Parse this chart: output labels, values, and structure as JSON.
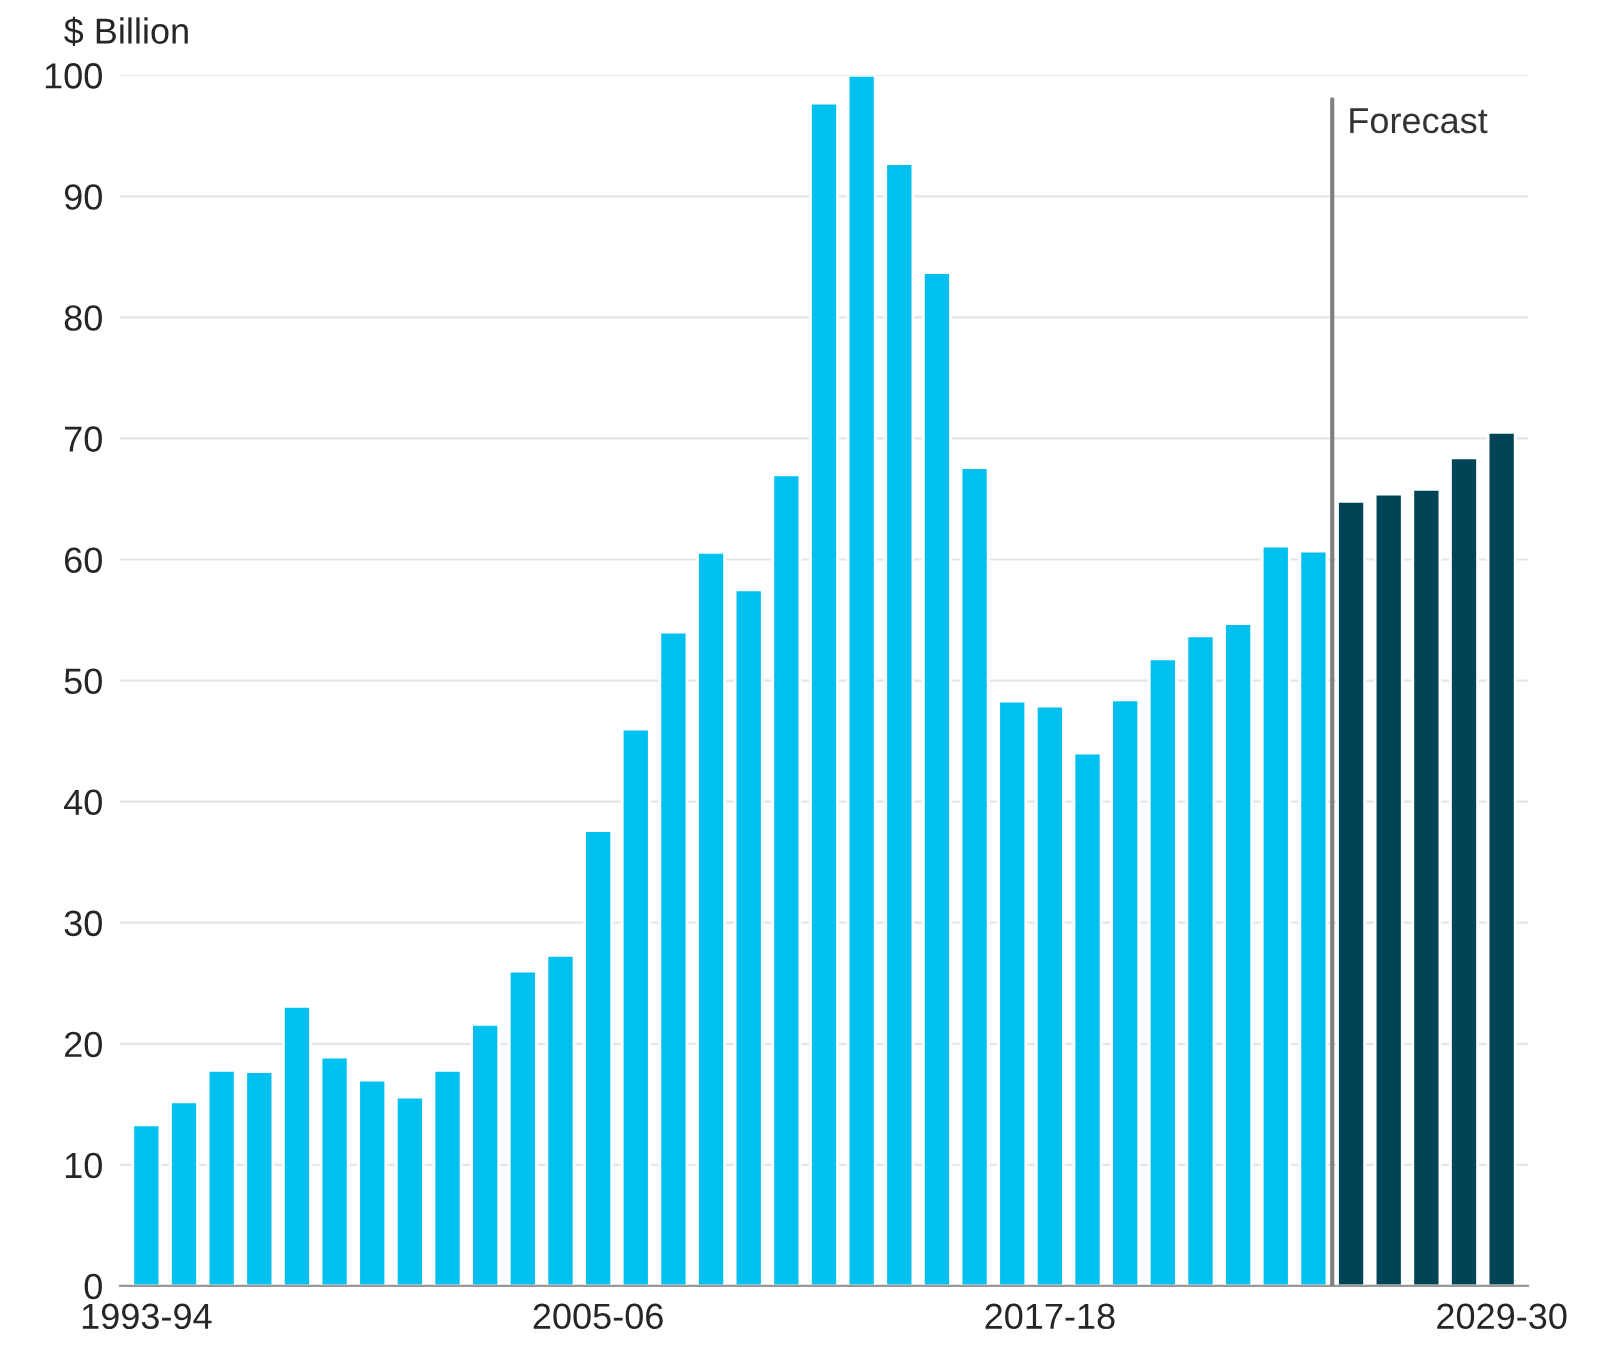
{
  "chart_data": {
    "type": "bar",
    "ylabel": "$ Billion",
    "categories": [
      "1993-94",
      null,
      null,
      null,
      null,
      null,
      null,
      null,
      null,
      null,
      null,
      null,
      "2005-06",
      null,
      null,
      null,
      null,
      null,
      null,
      null,
      null,
      null,
      null,
      null,
      "2017-18",
      null,
      null,
      null,
      null,
      null,
      null,
      null,
      null,
      null,
      null,
      null,
      "2029-30"
    ],
    "values": [
      13.3,
      15.2,
      17.8,
      17.7,
      23.1,
      18.9,
      17.0,
      15.6,
      17.8,
      21.6,
      26.0,
      27.3,
      37.6,
      46.0,
      54.0,
      60.6,
      57.5,
      67.0,
      97.7,
      100.0,
      92.7,
      83.7,
      67.6,
      48.3,
      47.9,
      44.0,
      48.4,
      51.8,
      53.7,
      54.7,
      61.1,
      60.7,
      64.8,
      65.4,
      65.8,
      68.4,
      70.5
    ],
    "colors": [
      "#00c0ef",
      "#00c0ef",
      "#00c0ef",
      "#00c0ef",
      "#00c0ef",
      "#00c0ef",
      "#00c0ef",
      "#00c0ef",
      "#00c0ef",
      "#00c0ef",
      "#00c0ef",
      "#00c0ef",
      "#00c0ef",
      "#00c0ef",
      "#00c0ef",
      "#00c0ef",
      "#00c0ef",
      "#00c0ef",
      "#00c0ef",
      "#00c0ef",
      "#00c0ef",
      "#00c0ef",
      "#00c0ef",
      "#00c0ef",
      "#00c0ef",
      "#00c0ef",
      "#00c0ef",
      "#00c0ef",
      "#00c0ef",
      "#00c0ef",
      "#00c0ef",
      "#00c0ef",
      "#004457",
      "#004457",
      "#004457",
      "#004457",
      "#004457"
    ],
    "ylim": [
      0,
      100
    ],
    "yticks": [
      0,
      10,
      20,
      30,
      40,
      50,
      60,
      70,
      80,
      90,
      100
    ],
    "grid": "y",
    "annotations": [
      "Forecast"
    ]
  }
}
